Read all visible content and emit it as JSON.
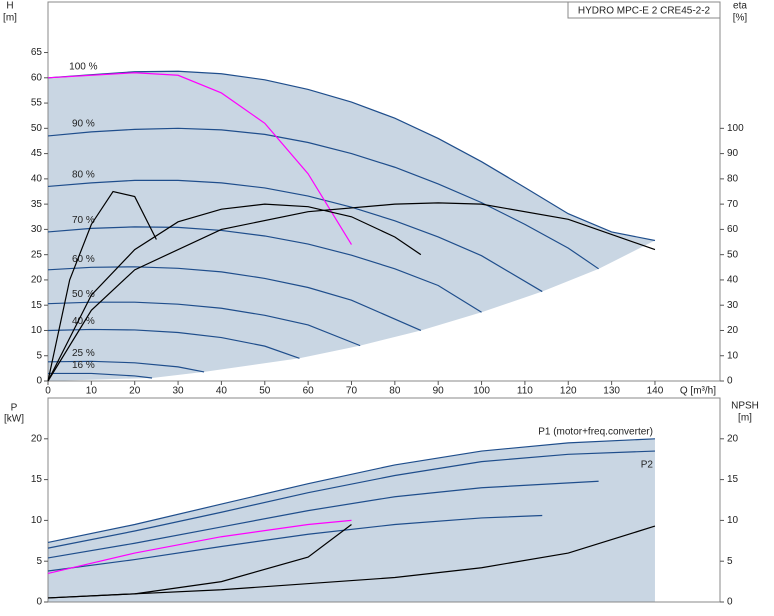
{
  "chart_data": [
    {
      "type": "line",
      "title": "HYDRO MPC-E 2 CRE45-2-2",
      "ylabel": "H",
      "yunit": "[m]",
      "y2label": "eta",
      "y2unit": "[%]",
      "xlabel": "Q [m³/h]",
      "xlim": [
        0,
        155
      ],
      "ylim": [
        0,
        75
      ],
      "y2lim": [
        0,
        150
      ],
      "xticks": [
        0,
        10,
        20,
        30,
        40,
        50,
        60,
        70,
        80,
        90,
        100,
        110,
        120,
        130,
        140
      ],
      "yticks": [
        0,
        5,
        10,
        15,
        20,
        25,
        30,
        35,
        40,
        45,
        50,
        55,
        60,
        65
      ],
      "y2ticks": [
        0,
        10,
        20,
        30,
        40,
        50,
        60,
        70,
        80,
        90,
        100
      ],
      "series": [
        {
          "name": "100 %",
          "color": "#1f4e8c",
          "x": [
            0,
            10,
            20,
            30,
            40,
            50,
            60,
            70,
            80,
            90,
            100,
            110,
            120,
            130,
            140
          ],
          "values": [
            60,
            60.6,
            61.2,
            61.3,
            60.8,
            59.6,
            57.7,
            55.2,
            52,
            48,
            43.4,
            38.3,
            33.1,
            29.5,
            27.8
          ]
        },
        {
          "name": "90 %",
          "color": "#1f4e8c",
          "x": [
            0,
            10,
            20,
            30,
            40,
            50,
            60,
            70,
            80,
            90,
            100,
            110,
            120,
            127
          ],
          "values": [
            48.5,
            49.3,
            49.8,
            50,
            49.7,
            48.8,
            47.2,
            45,
            42.3,
            39,
            35.3,
            31,
            26.3,
            22.2
          ]
        },
        {
          "name": "80 %",
          "color": "#1f4e8c",
          "x": [
            0,
            10,
            20,
            30,
            40,
            50,
            60,
            70,
            80,
            90,
            100,
            114
          ],
          "values": [
            38.5,
            39.2,
            39.7,
            39.7,
            39.2,
            38.2,
            36.6,
            34.4,
            31.7,
            28.5,
            24.8,
            17.7
          ]
        },
        {
          "name": "70 %",
          "color": "#1f4e8c",
          "x": [
            0,
            10,
            20,
            30,
            40,
            50,
            60,
            70,
            80,
            90,
            100
          ],
          "values": [
            29.5,
            30.2,
            30.5,
            30.4,
            29.8,
            28.7,
            27.1,
            24.9,
            22.2,
            18.9,
            13.6
          ]
        },
        {
          "name": "60 %",
          "color": "#1f4e8c",
          "x": [
            0,
            10,
            20,
            30,
            40,
            50,
            60,
            70,
            86
          ],
          "values": [
            22,
            22.5,
            22.6,
            22.3,
            21.6,
            20.3,
            18.5,
            16,
            10
          ]
        },
        {
          "name": "50 %",
          "color": "#1f4e8c",
          "x": [
            0,
            10,
            20,
            30,
            40,
            50,
            60,
            72
          ],
          "values": [
            15.3,
            15.6,
            15.6,
            15.2,
            14.4,
            13,
            11.1,
            7
          ]
        },
        {
          "name": "40 %",
          "color": "#1f4e8c",
          "x": [
            0,
            10,
            20,
            30,
            40,
            50,
            58
          ],
          "values": [
            10,
            10.2,
            10.1,
            9.6,
            8.6,
            6.9,
            4.5
          ]
        },
        {
          "name": "25 %",
          "color": "#1f4e8c",
          "x": [
            0,
            10,
            20,
            30,
            36
          ],
          "values": [
            3.8,
            3.9,
            3.6,
            2.8,
            1.8
          ]
        },
        {
          "name": "16 %",
          "color": "#1f4e8c",
          "x": [
            0,
            10,
            20,
            24
          ],
          "values": [
            1.5,
            1.5,
            1,
            0.6
          ]
        },
        {
          "color": "#ff00ff",
          "x": [
            0,
            20,
            30,
            40,
            50,
            60,
            65,
            70
          ],
          "values": [
            60,
            61,
            60.5,
            57,
            51,
            41,
            34,
            27
          ]
        },
        {
          "color": "#000000",
          "axis": "y2",
          "x": [
            0,
            10,
            20,
            40,
            60,
            80,
            90,
            100,
            120,
            140
          ],
          "values": [
            0,
            28,
            44,
            60,
            67,
            70,
            70.5,
            70,
            64,
            52
          ]
        },
        {
          "color": "#000000",
          "axis": "y2",
          "x": [
            0,
            5,
            10,
            15,
            20,
            25
          ],
          "values": [
            0,
            40,
            62,
            75,
            73,
            56
          ]
        },
        {
          "color": "#000000",
          "axis": "y2",
          "x": [
            0,
            10,
            20,
            30,
            40,
            50,
            60,
            70,
            80,
            86
          ],
          "values": [
            0,
            34,
            52,
            63,
            68,
            70,
            69,
            65,
            57,
            50
          ]
        }
      ]
    },
    {
      "type": "line",
      "ylabel": "P",
      "yunit": "[kW]",
      "y2label": "NPSH",
      "y2unit": "[m]",
      "xlim": [
        0,
        155
      ],
      "ylim": [
        0,
        25
      ],
      "y2lim": [
        0,
        25
      ],
      "yticks": [
        0,
        5,
        10,
        15,
        20
      ],
      "y2ticks": [
        0,
        5,
        10,
        15,
        20
      ],
      "series": [
        {
          "name": "P1 (motor+freq.converter)",
          "color": "#1f4e8c",
          "x": [
            0,
            20,
            40,
            60,
            80,
            100,
            120,
            140
          ],
          "values": [
            7.3,
            9.5,
            12,
            14.5,
            16.8,
            18.5,
            19.5,
            20
          ]
        },
        {
          "name": "P2",
          "color": "#1f4e8c",
          "x": [
            0,
            20,
            40,
            60,
            80,
            100,
            120,
            140
          ],
          "values": [
            6.6,
            8.7,
            11,
            13.4,
            15.5,
            17.2,
            18.1,
            18.5
          ]
        },
        {
          "color": "#1f4e8c",
          "x": [
            0,
            20,
            40,
            60,
            80,
            100,
            127
          ],
          "values": [
            5.4,
            7.2,
            9.2,
            11.2,
            12.9,
            14,
            14.8
          ]
        },
        {
          "color": "#1f4e8c",
          "x": [
            0,
            20,
            40,
            60,
            80,
            100,
            114
          ],
          "values": [
            3.8,
            5.2,
            6.8,
            8.3,
            9.5,
            10.3,
            10.6
          ]
        },
        {
          "color": "#ff00ff",
          "x": [
            0,
            20,
            40,
            60,
            70
          ],
          "values": [
            3.5,
            6,
            8,
            9.5,
            10
          ]
        },
        {
          "color": "#000000",
          "axis": "y2",
          "x": [
            0,
            40,
            80,
            100,
            120,
            140
          ],
          "values": [
            0.5,
            1.5,
            3,
            4.2,
            6,
            9.3
          ]
        },
        {
          "color": "#000000",
          "axis": "y2",
          "x": [
            0,
            20,
            40,
            60,
            70
          ],
          "values": [
            0.5,
            1,
            2.5,
            5.5,
            9.5
          ]
        }
      ]
    }
  ]
}
